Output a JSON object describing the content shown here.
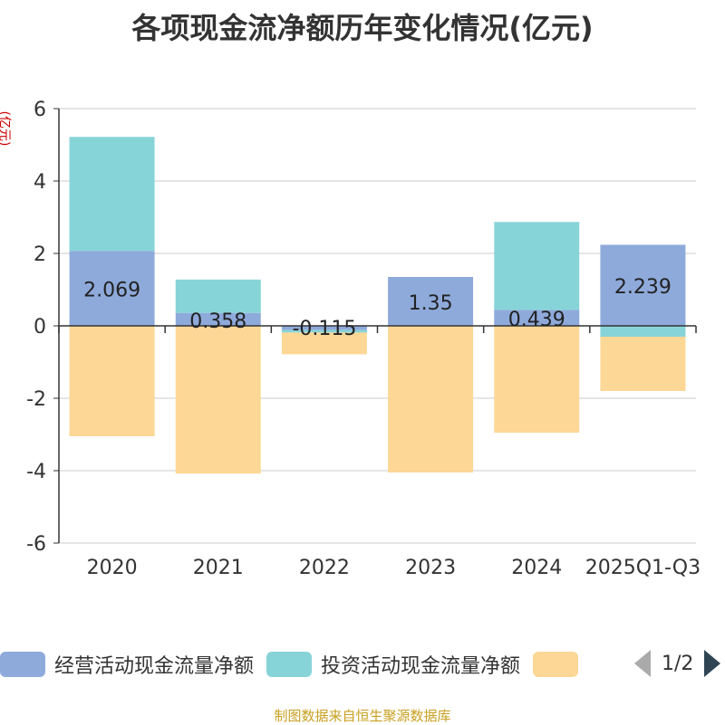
{
  "chart_data": {
    "type": "bar",
    "stacked": true,
    "title": "各项现金流净额历年变化情况(亿元)",
    "ylabel": "(亿元)",
    "ylim": [
      -6,
      6
    ],
    "yticks": [
      6,
      4,
      2,
      0,
      -2,
      -4,
      -6
    ],
    "categories": [
      "2020",
      "2021",
      "2022",
      "2023",
      "2024",
      "2025Q1-Q3"
    ],
    "series": [
      {
        "name": "经营活动现金流量净额",
        "color": "#8eaadb",
        "values": [
          2.069,
          0.358,
          -0.115,
          1.35,
          0.439,
          2.239
        ],
        "labels": [
          "2.069",
          "0.358",
          "-0.115",
          "1.35",
          "0.439",
          "2.239"
        ]
      },
      {
        "name": "投资活动现金流量净额",
        "color": "#87d4d8",
        "values": [
          3.15,
          0.92,
          -0.07,
          0.0,
          2.43,
          -0.3
        ]
      },
      {
        "name": "",
        "color": "#fdd796",
        "values": [
          -3.05,
          -4.08,
          -0.6,
          -4.05,
          -2.95,
          -1.5
        ]
      }
    ]
  },
  "legend": {
    "items": [
      {
        "name": "经营活动现金流量净额",
        "color": "#8eaadb"
      },
      {
        "name": "投资活动现金流量净额",
        "color": "#87d4d8"
      },
      {
        "name": "",
        "color": "#fdd796"
      }
    ],
    "page": "1/2"
  },
  "source": "制图数据来自恒生聚源数据库"
}
